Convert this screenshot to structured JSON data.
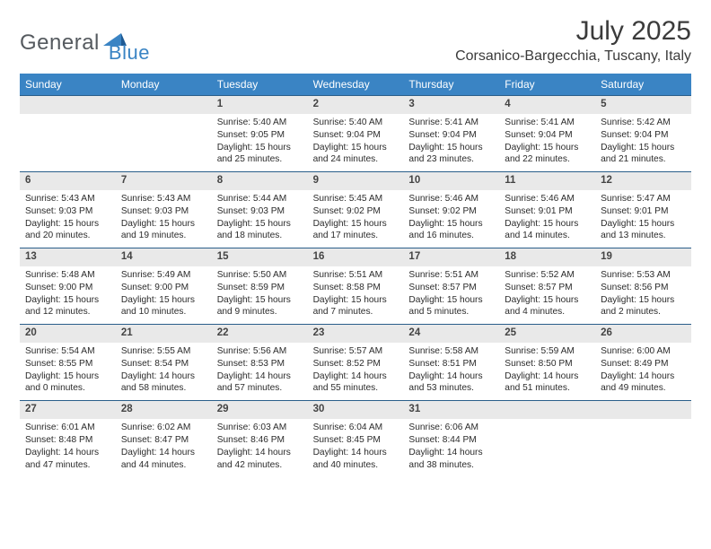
{
  "logo": {
    "text1": "General",
    "text2": "Blue",
    "accent_color": "#3a84c4",
    "text_color": "#555a5f"
  },
  "title": "July 2025",
  "location": "Corsanico-Bargecchia, Tuscany, Italy",
  "colors": {
    "header_bg": "#3a84c4",
    "header_text": "#ffffff",
    "week_border": "#2a5e8a",
    "daynum_bg": "#e9e9e9",
    "body_text": "#2b2b2b"
  },
  "day_names": [
    "Sunday",
    "Monday",
    "Tuesday",
    "Wednesday",
    "Thursday",
    "Friday",
    "Saturday"
  ],
  "weeks": [
    [
      {
        "n": "",
        "lines": []
      },
      {
        "n": "",
        "lines": []
      },
      {
        "n": "1",
        "lines": [
          "Sunrise: 5:40 AM",
          "Sunset: 9:05 PM",
          "Daylight: 15 hours and 25 minutes."
        ]
      },
      {
        "n": "2",
        "lines": [
          "Sunrise: 5:40 AM",
          "Sunset: 9:04 PM",
          "Daylight: 15 hours and 24 minutes."
        ]
      },
      {
        "n": "3",
        "lines": [
          "Sunrise: 5:41 AM",
          "Sunset: 9:04 PM",
          "Daylight: 15 hours and 23 minutes."
        ]
      },
      {
        "n": "4",
        "lines": [
          "Sunrise: 5:41 AM",
          "Sunset: 9:04 PM",
          "Daylight: 15 hours and 22 minutes."
        ]
      },
      {
        "n": "5",
        "lines": [
          "Sunrise: 5:42 AM",
          "Sunset: 9:04 PM",
          "Daylight: 15 hours and 21 minutes."
        ]
      }
    ],
    [
      {
        "n": "6",
        "lines": [
          "Sunrise: 5:43 AM",
          "Sunset: 9:03 PM",
          "Daylight: 15 hours and 20 minutes."
        ]
      },
      {
        "n": "7",
        "lines": [
          "Sunrise: 5:43 AM",
          "Sunset: 9:03 PM",
          "Daylight: 15 hours and 19 minutes."
        ]
      },
      {
        "n": "8",
        "lines": [
          "Sunrise: 5:44 AM",
          "Sunset: 9:03 PM",
          "Daylight: 15 hours and 18 minutes."
        ]
      },
      {
        "n": "9",
        "lines": [
          "Sunrise: 5:45 AM",
          "Sunset: 9:02 PM",
          "Daylight: 15 hours and 17 minutes."
        ]
      },
      {
        "n": "10",
        "lines": [
          "Sunrise: 5:46 AM",
          "Sunset: 9:02 PM",
          "Daylight: 15 hours and 16 minutes."
        ]
      },
      {
        "n": "11",
        "lines": [
          "Sunrise: 5:46 AM",
          "Sunset: 9:01 PM",
          "Daylight: 15 hours and 14 minutes."
        ]
      },
      {
        "n": "12",
        "lines": [
          "Sunrise: 5:47 AM",
          "Sunset: 9:01 PM",
          "Daylight: 15 hours and 13 minutes."
        ]
      }
    ],
    [
      {
        "n": "13",
        "lines": [
          "Sunrise: 5:48 AM",
          "Sunset: 9:00 PM",
          "Daylight: 15 hours and 12 minutes."
        ]
      },
      {
        "n": "14",
        "lines": [
          "Sunrise: 5:49 AM",
          "Sunset: 9:00 PM",
          "Daylight: 15 hours and 10 minutes."
        ]
      },
      {
        "n": "15",
        "lines": [
          "Sunrise: 5:50 AM",
          "Sunset: 8:59 PM",
          "Daylight: 15 hours and 9 minutes."
        ]
      },
      {
        "n": "16",
        "lines": [
          "Sunrise: 5:51 AM",
          "Sunset: 8:58 PM",
          "Daylight: 15 hours and 7 minutes."
        ]
      },
      {
        "n": "17",
        "lines": [
          "Sunrise: 5:51 AM",
          "Sunset: 8:57 PM",
          "Daylight: 15 hours and 5 minutes."
        ]
      },
      {
        "n": "18",
        "lines": [
          "Sunrise: 5:52 AM",
          "Sunset: 8:57 PM",
          "Daylight: 15 hours and 4 minutes."
        ]
      },
      {
        "n": "19",
        "lines": [
          "Sunrise: 5:53 AM",
          "Sunset: 8:56 PM",
          "Daylight: 15 hours and 2 minutes."
        ]
      }
    ],
    [
      {
        "n": "20",
        "lines": [
          "Sunrise: 5:54 AM",
          "Sunset: 8:55 PM",
          "Daylight: 15 hours and 0 minutes."
        ]
      },
      {
        "n": "21",
        "lines": [
          "Sunrise: 5:55 AM",
          "Sunset: 8:54 PM",
          "Daylight: 14 hours and 58 minutes."
        ]
      },
      {
        "n": "22",
        "lines": [
          "Sunrise: 5:56 AM",
          "Sunset: 8:53 PM",
          "Daylight: 14 hours and 57 minutes."
        ]
      },
      {
        "n": "23",
        "lines": [
          "Sunrise: 5:57 AM",
          "Sunset: 8:52 PM",
          "Daylight: 14 hours and 55 minutes."
        ]
      },
      {
        "n": "24",
        "lines": [
          "Sunrise: 5:58 AM",
          "Sunset: 8:51 PM",
          "Daylight: 14 hours and 53 minutes."
        ]
      },
      {
        "n": "25",
        "lines": [
          "Sunrise: 5:59 AM",
          "Sunset: 8:50 PM",
          "Daylight: 14 hours and 51 minutes."
        ]
      },
      {
        "n": "26",
        "lines": [
          "Sunrise: 6:00 AM",
          "Sunset: 8:49 PM",
          "Daylight: 14 hours and 49 minutes."
        ]
      }
    ],
    [
      {
        "n": "27",
        "lines": [
          "Sunrise: 6:01 AM",
          "Sunset: 8:48 PM",
          "Daylight: 14 hours and 47 minutes."
        ]
      },
      {
        "n": "28",
        "lines": [
          "Sunrise: 6:02 AM",
          "Sunset: 8:47 PM",
          "Daylight: 14 hours and 44 minutes."
        ]
      },
      {
        "n": "29",
        "lines": [
          "Sunrise: 6:03 AM",
          "Sunset: 8:46 PM",
          "Daylight: 14 hours and 42 minutes."
        ]
      },
      {
        "n": "30",
        "lines": [
          "Sunrise: 6:04 AM",
          "Sunset: 8:45 PM",
          "Daylight: 14 hours and 40 minutes."
        ]
      },
      {
        "n": "31",
        "lines": [
          "Sunrise: 6:06 AM",
          "Sunset: 8:44 PM",
          "Daylight: 14 hours and 38 minutes."
        ]
      },
      {
        "n": "",
        "lines": []
      },
      {
        "n": "",
        "lines": []
      }
    ]
  ]
}
